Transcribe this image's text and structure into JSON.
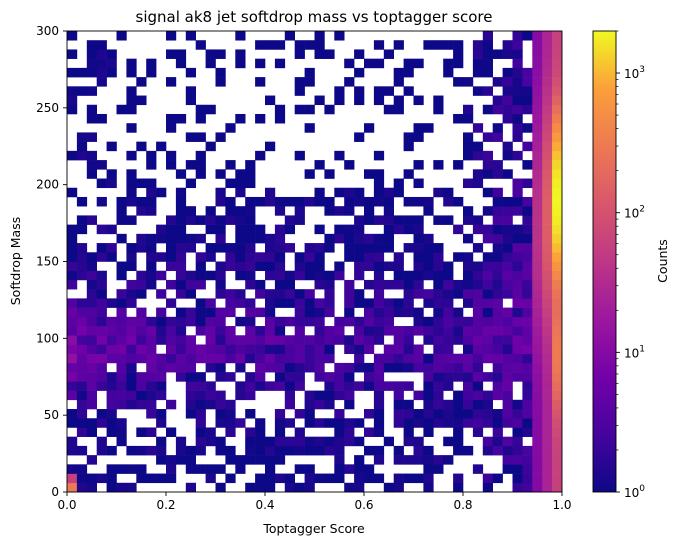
{
  "chart_data": {
    "type": "heatmap",
    "title": "signal ak8 jet softdrop mass vs toptagger score",
    "xlabel": "Toptagger Score",
    "ylabel": "Softdrop Mass",
    "xlim": [
      0.0,
      1.0
    ],
    "ylim": [
      0,
      300
    ],
    "x_bins": 50,
    "y_bins": 50,
    "x_ticks": [
      "0.0",
      "0.2",
      "0.4",
      "0.6",
      "0.8",
      "1.0"
    ],
    "y_ticks": [
      "0",
      "50",
      "100",
      "150",
      "200",
      "250",
      "300"
    ],
    "colorbar": {
      "label": "Counts",
      "scale": "log",
      "range": [
        1,
        2000
      ],
      "colormap": "plasma",
      "major_ticks": [
        {
          "value": 1,
          "base": "10",
          "exp": "0"
        },
        {
          "value": 10,
          "base": "10",
          "exp": "1"
        },
        {
          "value": 100,
          "base": "10",
          "exp": "2"
        },
        {
          "value": 1000,
          "base": "10",
          "exp": "3"
        }
      ]
    },
    "features": [
      {
        "description": "dense column at toptagger score ~1.0",
        "x": 0.99,
        "mass_range": [
          0,
          300
        ],
        "peak_mass": 190,
        "peak_counts": 2000
      },
      {
        "description": "band at low toptagger score",
        "x_range": [
          0.0,
          0.2
        ],
        "mass_range": [
          70,
          115
        ],
        "typical_counts": 20
      },
      {
        "description": "spike near zero mass and zero score",
        "x": 0.01,
        "y": 3,
        "counts": 300
      },
      {
        "description": "sparse region",
        "x_range": [
          0.1,
          0.8
        ],
        "mass_range": [
          200,
          300
        ],
        "typical_counts": 1
      }
    ]
  }
}
